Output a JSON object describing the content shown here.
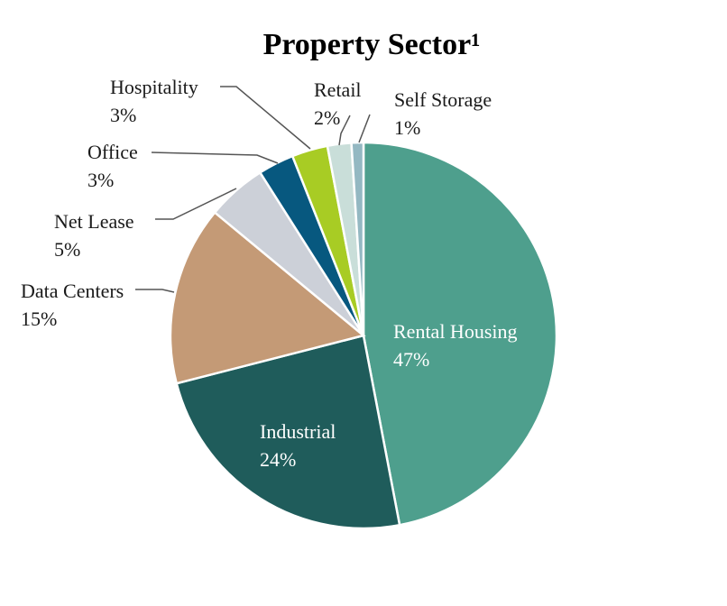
{
  "chart_data": {
    "type": "pie",
    "title": "Property Sector¹",
    "slices": [
      {
        "label": "Rental Housing",
        "value": 47,
        "display": "47%",
        "color": "#4e9f8d"
      },
      {
        "label": "Industrial",
        "value": 24,
        "display": "24%",
        "color": "#1f5c5b"
      },
      {
        "label": "Data Centers",
        "value": 15,
        "display": "15%",
        "color": "#c49a76"
      },
      {
        "label": "Net Lease",
        "value": 5,
        "display": "5%",
        "color": "#ccd0d8"
      },
      {
        "label": "Office",
        "value": 3,
        "display": "3%",
        "color": "#07587f"
      },
      {
        "label": "Hospitality",
        "value": 3,
        "display": "3%",
        "color": "#a8cc24"
      },
      {
        "label": "Retail",
        "value": 2,
        "display": "2%",
        "color": "#c9ded9"
      },
      {
        "label": "Self Storage",
        "value": 1,
        "display": "1%",
        "color": "#94b8c2"
      }
    ]
  }
}
